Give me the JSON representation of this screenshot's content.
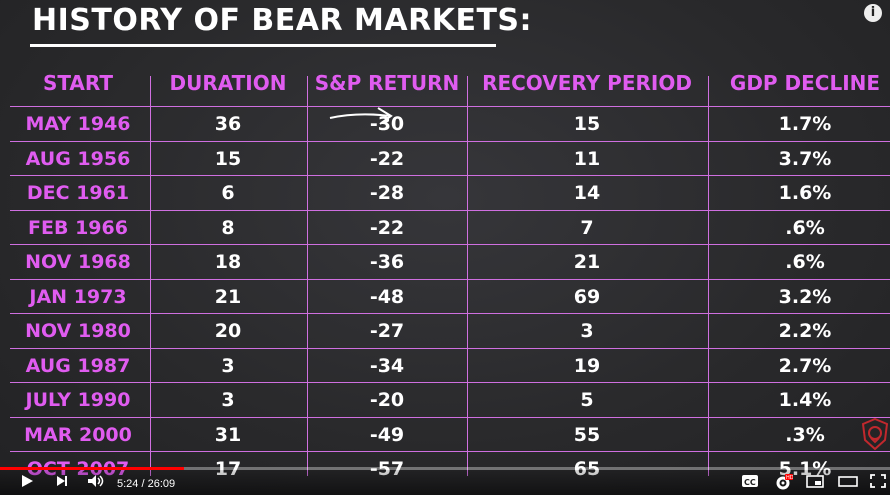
{
  "title": "HISTORY OF BEAR MARKETS:",
  "columns": [
    "START",
    "DURATION",
    "S&P RETURN",
    "RECOVERY PERIOD",
    "GDP DECLINE"
  ],
  "rows": [
    {
      "start": "MAY 1946",
      "duration": "36",
      "sp_return": "-30",
      "recovery": "15",
      "gdp": "1.7%"
    },
    {
      "start": "AUG 1956",
      "duration": "15",
      "sp_return": "-22",
      "recovery": "11",
      "gdp": "3.7%"
    },
    {
      "start": "DEC 1961",
      "duration": "6",
      "sp_return": "-28",
      "recovery": "14",
      "gdp": "1.6%"
    },
    {
      "start": "FEB 1966",
      "duration": "8",
      "sp_return": "-22",
      "recovery": "7",
      "gdp": ".6%"
    },
    {
      "start": "NOV 1968",
      "duration": "18",
      "sp_return": "-36",
      "recovery": "21",
      "gdp": ".6%"
    },
    {
      "start": "JAN 1973",
      "duration": "21",
      "sp_return": "-48",
      "recovery": "69",
      "gdp": "3.2%"
    },
    {
      "start": "NOV 1980",
      "duration": "20",
      "sp_return": "-27",
      "recovery": "3",
      "gdp": "2.2%"
    },
    {
      "start": "AUG 1987",
      "duration": "3",
      "sp_return": "-34",
      "recovery": "19",
      "gdp": "2.7%"
    },
    {
      "start": "JULY 1990",
      "duration": "3",
      "sp_return": "-20",
      "recovery": "5",
      "gdp": "1.4%"
    },
    {
      "start": "MAR 2000",
      "duration": "31",
      "sp_return": "-49",
      "recovery": "55",
      "gdp": ".3%"
    },
    {
      "start": "OCT 2007",
      "duration": "17",
      "sp_return": "-57",
      "recovery": "65",
      "gdp": "5.1%"
    }
  ],
  "player": {
    "current_time": "5:24",
    "duration": "26:09",
    "time_display": "5:24 / 26:09",
    "progress_fraction": 0.2065,
    "hd_badge": "HD",
    "cc_label": "CC",
    "info_label": "i",
    "accent_color": "#ff0000"
  },
  "colors": {
    "header_magenta": "#e05cf0",
    "grid_line": "#cf6fe0",
    "background": "#2a2a2c",
    "text": "#ffffff"
  }
}
